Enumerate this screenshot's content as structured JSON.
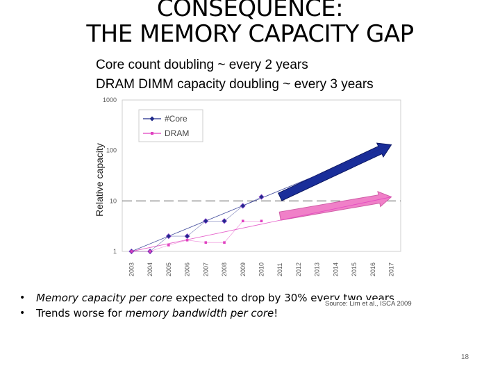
{
  "slide": {
    "title_line1": "CONSEQUENCE:",
    "title_line2": "THE MEMORY CAPACITY GAP",
    "subtitle_line1": "Core count doubling ~ every 2 years",
    "subtitle_line2": "DRAM DIMM capacity doubling ~ every 3 years",
    "bullets": [
      {
        "part1": "Memory capacity per core",
        "part2": " expected to drop by 30% every two years"
      },
      {
        "part1": "Trends worse for ",
        "part2": "memory bandwidth per core",
        "part3": "!"
      }
    ],
    "source": "Source: Lim et al., ISCA 2009",
    "page_number": "18"
  },
  "chart_data": {
    "type": "line",
    "ylabel": "Relative capacity",
    "yscale": "log",
    "ylim": [
      1,
      1000
    ],
    "yticks": [
      "1",
      "10",
      "100",
      "1000"
    ],
    "categories": [
      "2003",
      "2004",
      "2005",
      "2006",
      "2007",
      "2008",
      "2009",
      "2010",
      "2011",
      "2012",
      "2013",
      "2014",
      "2015",
      "2016",
      "2017"
    ],
    "series": [
      {
        "name": "#Core",
        "color": "#1f2a8a",
        "marker": "diamond",
        "x": [
          "2003",
          "2004",
          "2005",
          "2006",
          "2007",
          "2008",
          "2009",
          "2010"
        ],
        "values": [
          1,
          1,
          2,
          2,
          4,
          4,
          8,
          12
        ]
      },
      {
        "name": "DRAM",
        "color": "#e040c0",
        "marker": "square",
        "x": [
          "2003",
          "2004",
          "2005",
          "2006",
          "2007",
          "2008",
          "2009",
          "2010"
        ],
        "values": [
          1,
          1,
          1.33,
          1.67,
          1.5,
          1.5,
          4,
          4
        ]
      }
    ],
    "trend_arrows": [
      {
        "name": "#Core",
        "color": "#1a2e9a",
        "from": [
          "2011",
          12
        ],
        "to": [
          "2017",
          130
        ]
      },
      {
        "name": "DRAM",
        "color": "#f080c8",
        "from": [
          "2011",
          5
        ],
        "to": [
          "2017",
          12
        ]
      }
    ],
    "reference_line": {
      "value": 10,
      "style": "dashed"
    },
    "legend": {
      "position": "top-left"
    }
  }
}
